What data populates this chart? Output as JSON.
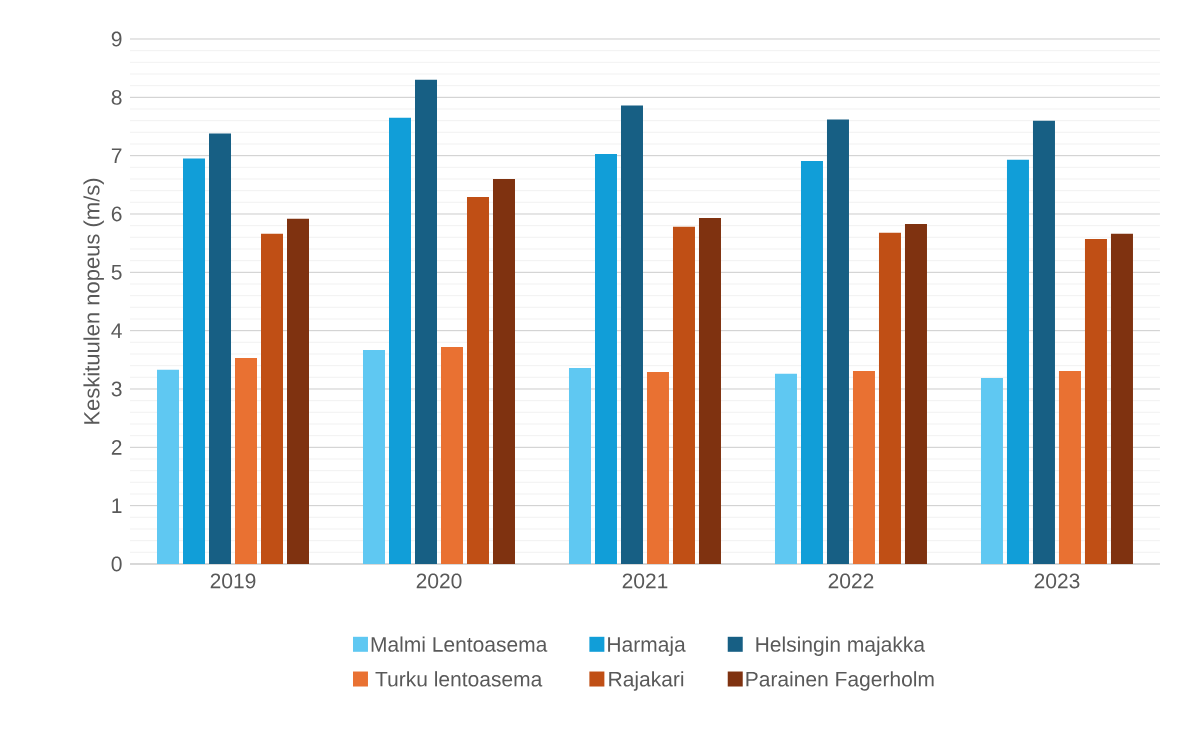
{
  "chart_data": {
    "type": "bar",
    "ylabel": "Keskituulen nopeus (m/s)",
    "categories": [
      "2019",
      "2020",
      "2021",
      "2022",
      "2023"
    ],
    "series": [
      {
        "name": "Malmi Lentoasema",
        "color": "#5fc8f2",
        "values": [
          3.33,
          3.67,
          3.36,
          3.26,
          3.19
        ]
      },
      {
        "name": "Harmaja",
        "color": "#119ed8",
        "values": [
          6.95,
          7.65,
          7.03,
          6.91,
          6.93
        ]
      },
      {
        "name": "Helsingin majakka",
        "color": "#175f84",
        "values": [
          7.38,
          8.3,
          7.86,
          7.62,
          7.6
        ]
      },
      {
        "name": "Turku lentoasema",
        "color": "#e97132",
        "values": [
          3.53,
          3.72,
          3.29,
          3.31,
          3.31
        ]
      },
      {
        "name": "Rajakari",
        "color": "#c04f15",
        "values": [
          5.66,
          6.29,
          5.78,
          5.68,
          5.57
        ]
      },
      {
        "name": "Parainen Fagerholm",
        "color": "#7f3210",
        "values": [
          5.92,
          6.6,
          5.93,
          5.83,
          5.66
        ]
      }
    ],
    "ylim": [
      0,
      9
    ],
    "yticks": [
      0,
      1,
      2,
      3,
      4,
      5,
      6,
      7,
      8,
      9
    ],
    "grid": "y",
    "legend": "bottom"
  }
}
